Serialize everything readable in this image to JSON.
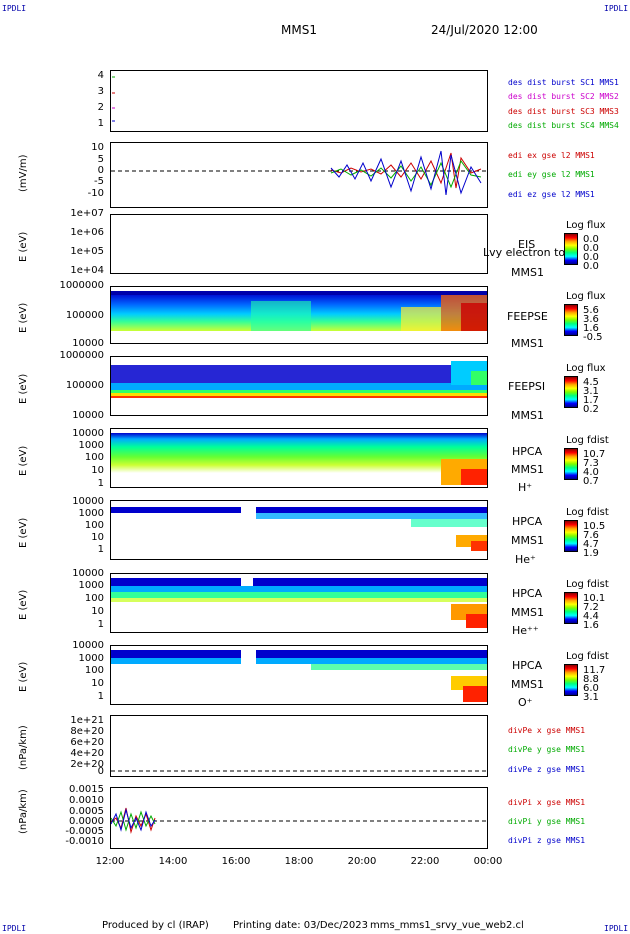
{
  "corners": {
    "tl": "IPDLI",
    "tr": "IPDLI",
    "bl": "IPDLI",
    "br": "IPDLI"
  },
  "header": {
    "spacecraft": "MMS1",
    "datetime": "24/Jul/2020 12:00"
  },
  "panels": [
    {
      "ylabel": "",
      "ticks": [
        "4",
        "3",
        "2",
        "1"
      ],
      "legend": [
        {
          "text": "des dist burst SC1 MMS1",
          "color": "#0000cc"
        },
        {
          "text": "des dist burst SC2 MMS2",
          "color": "#cc00cc"
        },
        {
          "text": "des dist burst SC3 MMS3",
          "color": "#cc0000"
        },
        {
          "text": "des dist burst SC4 MMS4",
          "color": "#00aa00"
        }
      ]
    },
    {
      "ylabel": "(mV/m)",
      "ticks": [
        "10",
        "5",
        "0",
        "-5",
        "-10"
      ],
      "legend": [
        {
          "text": "edi ex gse l2 MMS1",
          "color": "#cc0000"
        },
        {
          "text": "edi ey gse l2 MMS1",
          "color": "#00aa00"
        },
        {
          "text": "edi ez gse l2 MMS1",
          "color": "#0000cc"
        }
      ]
    },
    {
      "ylabel": "E (eV)",
      "ticks": [
        "1e+07",
        "1e+06",
        "1e+05",
        "1e+04"
      ],
      "inst": [
        "EIS",
        "MMS1"
      ],
      "overlay": "Lvy electron to",
      "cb": {
        "title": "Log flux",
        "vals": [
          "0.0",
          "0.0",
          "0.0",
          "0.0"
        ]
      }
    },
    {
      "ylabel": "E (eV)",
      "ticks": [
        "1000000",
        "100000",
        "10000"
      ],
      "inst": [
        "FEEPSE",
        "MMS1"
      ],
      "cb": {
        "title": "Log flux",
        "vals": [
          "5.6",
          "3.6",
          "1.6",
          "-0.5"
        ]
      }
    },
    {
      "ylabel": "E (eV)",
      "ticks": [
        "1000000",
        "100000",
        "10000"
      ],
      "inst": [
        "FEEPSI",
        "MMS1"
      ],
      "cb": {
        "title": "Log flux",
        "vals": [
          "4.5",
          "3.1",
          "1.7",
          "0.2"
        ]
      }
    },
    {
      "ylabel": "E (eV)",
      "ticks": [
        "10000",
        "1000",
        "100",
        "10",
        "1"
      ],
      "inst": [
        "HPCA",
        "MMS1",
        "H⁺"
      ],
      "cb": {
        "title": "Log fdist",
        "vals": [
          "10.7",
          "7.3",
          "4.0",
          "0.7"
        ]
      }
    },
    {
      "ylabel": "E (eV)",
      "ticks": [
        "10000",
        "1000",
        "100",
        "10",
        "1"
      ],
      "inst": [
        "HPCA",
        "MMS1",
        "He⁺"
      ],
      "cb": {
        "title": "Log fdist",
        "vals": [
          "10.5",
          "7.6",
          "4.7",
          "1.9"
        ]
      }
    },
    {
      "ylabel": "E (eV)",
      "ticks": [
        "10000",
        "1000",
        "100",
        "10",
        "1"
      ],
      "inst": [
        "HPCA",
        "MMS1",
        "He⁺⁺"
      ],
      "cb": {
        "title": "Log fdist",
        "vals": [
          "10.1",
          "7.2",
          "4.4",
          "1.6"
        ]
      }
    },
    {
      "ylabel": "E (eV)",
      "ticks": [
        "10000",
        "1000",
        "100",
        "10",
        "1"
      ],
      "inst": [
        "HPCA",
        "MMS1",
        "O⁺"
      ],
      "cb": {
        "title": "Log fdist",
        "vals": [
          "11.7",
          "8.8",
          "6.0",
          "3.1"
        ]
      }
    },
    {
      "ylabel": "(nPa/km)",
      "ticks": [
        "1e+21",
        "8e+20",
        "6e+20",
        "4e+20",
        "2e+20",
        "0"
      ],
      "legend": [
        {
          "text": "divPe x gse MMS1",
          "color": "#cc0000"
        },
        {
          "text": "divPe y gse MMS1",
          "color": "#00aa00"
        },
        {
          "text": "divPe z gse MMS1",
          "color": "#0000cc"
        }
      ]
    },
    {
      "ylabel": "(nPa/km)",
      "ticks": [
        "0.0015",
        "0.0010",
        "0.0005",
        "0.0000",
        "-0.0005",
        "-0.0010"
      ],
      "legend": [
        {
          "text": "divPi x gse MMS1",
          "color": "#cc0000"
        },
        {
          "text": "divPi y gse MMS1",
          "color": "#00aa00"
        },
        {
          "text": "divPi z gse MMS1",
          "color": "#0000cc"
        }
      ]
    }
  ],
  "xaxis": [
    "12:00",
    "14:00",
    "16:00",
    "18:00",
    "20:00",
    "22:00",
    "00:00"
  ],
  "footer": {
    "produced": "Produced by cl (IRAP)",
    "printing": "Printing date: 03/Dec/2023",
    "file": "mms_mms1_srvy_vue_web2.cl"
  }
}
